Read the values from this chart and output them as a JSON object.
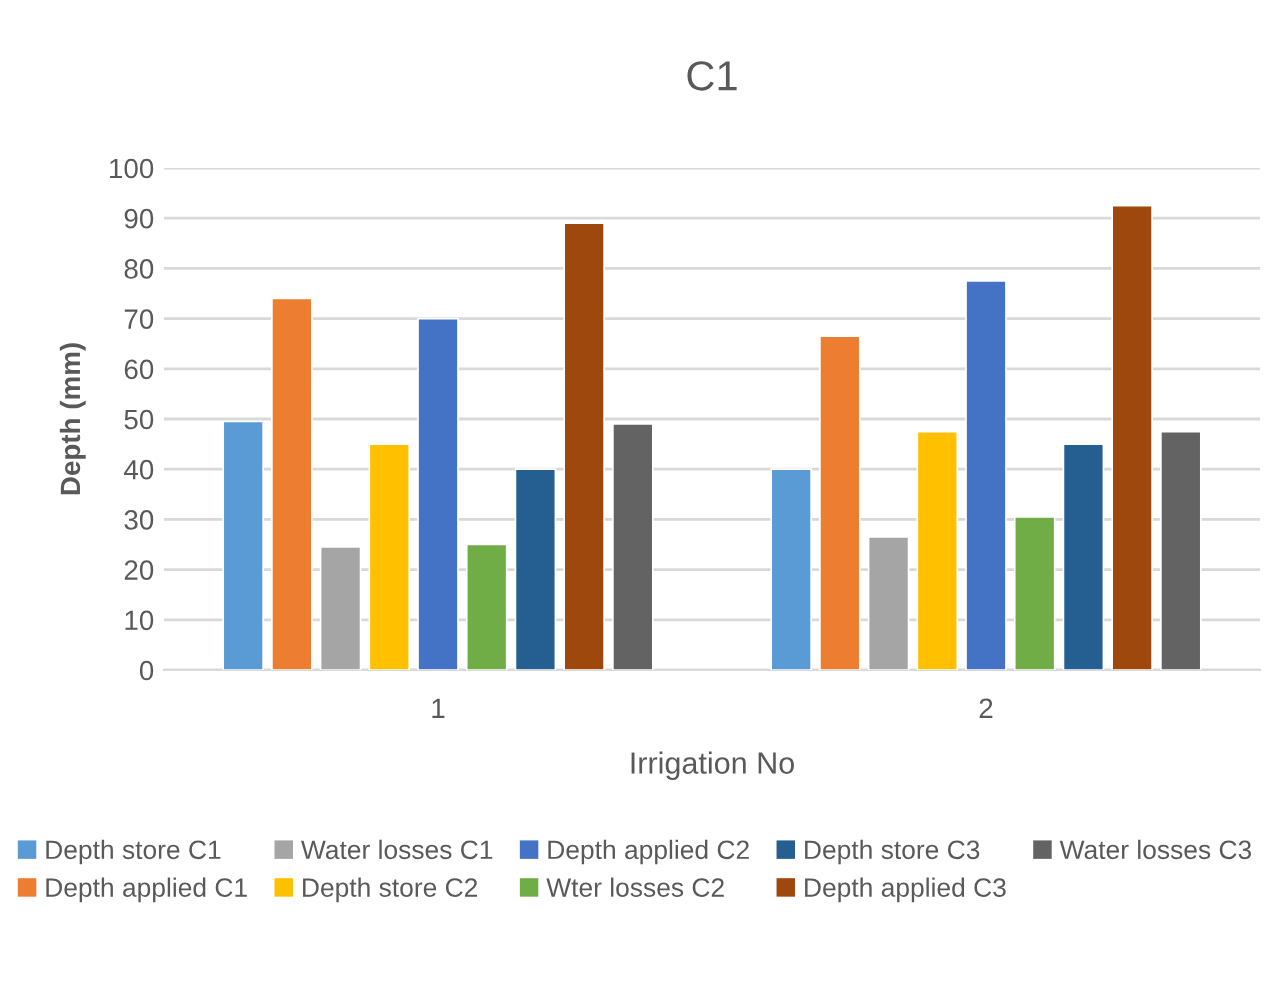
{
  "chart_data": {
    "type": "bar",
    "title": "C1",
    "xlabel": "Irrigation No",
    "ylabel": "Depth (mm)",
    "categories": [
      "1",
      "2"
    ],
    "ylim": [
      0,
      100
    ],
    "yticks": [
      0,
      10,
      20,
      30,
      40,
      50,
      60,
      70,
      80,
      90,
      100
    ],
    "grid": "y",
    "legend": "bottom",
    "series": [
      {
        "name": "Depth store C1",
        "color": "#5b9bd5",
        "values": [
          49.5,
          40
        ]
      },
      {
        "name": "Depth applied C1",
        "color": "#ed7d31",
        "values": [
          74,
          66.5
        ]
      },
      {
        "name": "Water losses C1",
        "color": "#a5a5a5",
        "values": [
          24.5,
          26.5
        ]
      },
      {
        "name": "Depth store C2",
        "color": "#ffc000",
        "values": [
          45,
          47.5
        ]
      },
      {
        "name": "Depth applied C2",
        "color": "#4472c4",
        "values": [
          70,
          77.5
        ]
      },
      {
        "name": "Wter losses C2",
        "color": "#70ad47",
        "values": [
          25,
          30.5
        ]
      },
      {
        "name": "Depth store C3",
        "color": "#255e91",
        "values": [
          40,
          45
        ]
      },
      {
        "name": "Depth applied C3",
        "color": "#9e480e",
        "values": [
          89,
          92.5
        ]
      },
      {
        "name": "Water losses C3",
        "color": "#636363",
        "values": [
          49,
          47.5
        ]
      }
    ]
  }
}
